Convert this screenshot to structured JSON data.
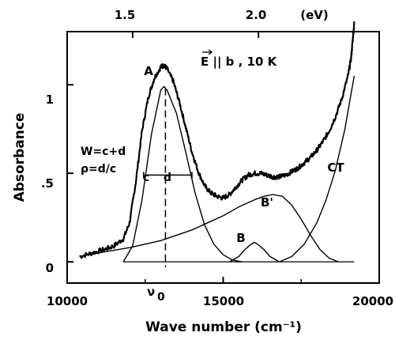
{
  "chart_data": {
    "type": "line",
    "xlabel": "Wave number (cm⁻¹)",
    "ylabel": "Absorbance",
    "xlim": [
      10000,
      20000
    ],
    "ylim": [
      -0.12,
      1.3
    ],
    "x_ticks": [
      10000,
      15000,
      20000
    ],
    "x_tick_labels": [
      "10000",
      "15000",
      "20000"
    ],
    "y_ticks": [
      0,
      0.5,
      1
    ],
    "y_tick_labels": [
      "0",
      ".5",
      "1"
    ],
    "top_axis": {
      "ticks_ev": [
        1.5,
        2.0
      ],
      "tick_labels": [
        "1.5",
        "2.0"
      ],
      "unit_label": "(eV)"
    },
    "series": [
      {
        "name": "A",
        "role": "gaussian component",
        "x": [
          11800,
          12100,
          12400,
          12700,
          13000,
          13100,
          13200,
          13500,
          13800,
          14100,
          14400,
          14700,
          15000,
          15300,
          15600
        ],
        "y": [
          0.0,
          0.09,
          0.35,
          0.72,
          0.97,
          0.99,
          0.97,
          0.84,
          0.62,
          0.39,
          0.21,
          0.1,
          0.04,
          0.01,
          0.0
        ]
      },
      {
        "name": "B",
        "role": "gaussian component",
        "x": [
          15200,
          15500,
          15700,
          15900,
          16000,
          16100,
          16300,
          16500,
          16800
        ],
        "y": [
          0.0,
          0.03,
          0.07,
          0.1,
          0.11,
          0.1,
          0.07,
          0.03,
          0.0
        ]
      },
      {
        "name": "B'",
        "role": "gaussian component",
        "x": [
          10400,
          11000,
          12000,
          13000,
          14000,
          15000,
          15500,
          16000,
          16300,
          16600,
          16900,
          17200,
          17500,
          17800,
          18100,
          18400,
          18700
        ],
        "y": [
          0.03,
          0.05,
          0.08,
          0.12,
          0.18,
          0.26,
          0.31,
          0.35,
          0.37,
          0.38,
          0.37,
          0.32,
          0.24,
          0.15,
          0.07,
          0.02,
          0.0
        ]
      },
      {
        "name": "CT",
        "role": "band edge component",
        "x": [
          16800,
          17200,
          17600,
          18000,
          18300,
          18600,
          18900,
          19100,
          19200
        ],
        "y": [
          0.0,
          0.03,
          0.1,
          0.22,
          0.35,
          0.52,
          0.75,
          0.95,
          1.05
        ]
      },
      {
        "name": "",
        "role": "measured spectrum (noisy)",
        "x": [
          10400,
          10800,
          11200,
          11500,
          11800,
          12000,
          12200,
          12400,
          12600,
          12800,
          13000,
          13100,
          13200,
          13400,
          13600,
          13800,
          14000,
          14200,
          14400,
          14600,
          14800,
          15000,
          15200,
          15400,
          15600,
          15800,
          16000,
          16200,
          16400,
          16600,
          16800,
          17000,
          17200,
          17400,
          17600,
          17800,
          18000,
          18200,
          18400,
          18600,
          18800,
          19000,
          19100,
          19150,
          19200
        ],
        "y": [
          0.03,
          0.05,
          0.07,
          0.09,
          0.13,
          0.22,
          0.45,
          0.74,
          0.93,
          1.04,
          1.1,
          1.11,
          1.09,
          1.02,
          0.9,
          0.76,
          0.62,
          0.51,
          0.43,
          0.39,
          0.37,
          0.36,
          0.38,
          0.42,
          0.46,
          0.49,
          0.5,
          0.5,
          0.49,
          0.48,
          0.48,
          0.49,
          0.51,
          0.53,
          0.56,
          0.59,
          0.63,
          0.68,
          0.74,
          0.82,
          0.92,
          1.05,
          1.15,
          1.25,
          1.35
        ]
      }
    ],
    "annotations": {
      "field_label": "E || b , 10 K",
      "peak_A": "A",
      "band_B": "B",
      "band_Bprime": "B'",
      "band_CT": "CT",
      "width_formula": "W=c+d",
      "rho_formula": "ρ=d/c",
      "c_label": "c",
      "d_label": "d",
      "nu0_label": "ν",
      "nu0_sub": "0"
    },
    "grid": false,
    "legend": "none"
  }
}
